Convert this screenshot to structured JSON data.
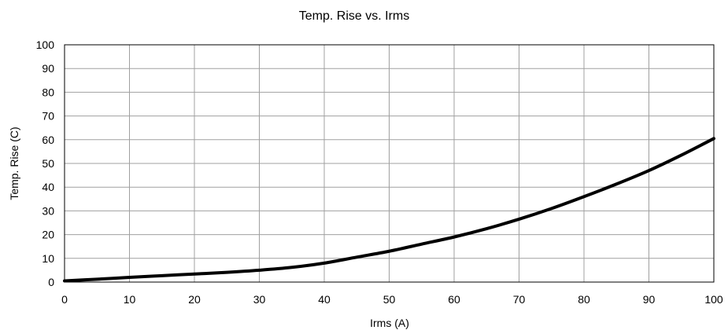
{
  "chart_data": {
    "type": "line",
    "title": "Temp. Rise vs. Irms",
    "xlabel": "Irms (A)",
    "ylabel": "Temp. Rise (C)",
    "xlim": [
      0,
      100
    ],
    "ylim": [
      0,
      100
    ],
    "xticks": [
      0,
      10,
      20,
      30,
      40,
      50,
      60,
      70,
      80,
      90,
      100
    ],
    "yticks": [
      0,
      10,
      20,
      30,
      40,
      50,
      60,
      70,
      80,
      90,
      100
    ],
    "grid": true,
    "legend": "none",
    "line_color": "#000000",
    "grid_color": "#a0a0a0",
    "series": [
      {
        "x": [
          0,
          5,
          10,
          15,
          20,
          25,
          30,
          35,
          40,
          45,
          50,
          55,
          60,
          65,
          70,
          75,
          80,
          85,
          90,
          95,
          100
        ],
        "y": [
          0.5,
          1.2,
          2,
          2.7,
          3.4,
          4.1,
          5,
          6.2,
          8,
          10.5,
          13,
          16,
          19,
          22.5,
          26.5,
          31,
          36,
          41.3,
          47,
          53.5,
          60.5
        ]
      }
    ]
  }
}
